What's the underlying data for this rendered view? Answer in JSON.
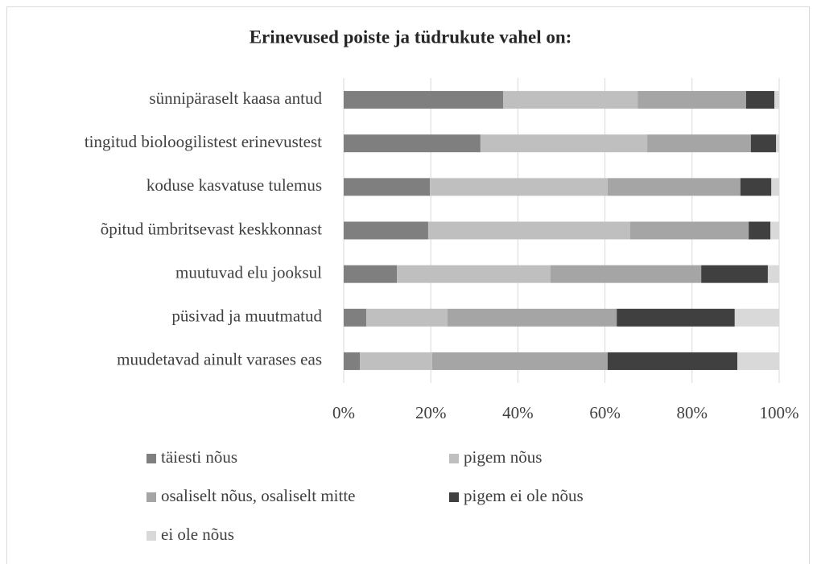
{
  "chart_data": {
    "type": "stacked_bar_horizontal",
    "title": "Erinevused poiste ja tüdrukute vahel on:",
    "categories": [
      "sünnipäraselt kaasa antud",
      "tingitud bioloogilistest erinevustest",
      "koduse kasvatuse tulemus",
      "õpitud ümbritsevast keskkonnast",
      "muutuvad elu jooksul",
      "püsivad ja muutmatud",
      "muudetavad ainult varases eas"
    ],
    "series": [
      {
        "name": "täiesti nõus",
        "color": "#7f7f7f",
        "values": [
          36.6,
          31.4,
          19.8,
          19.4,
          12.2,
          5.2,
          3.7
        ]
      },
      {
        "name": "pigem nõus",
        "color": "#bfbfbf",
        "values": [
          30.9,
          38.3,
          40.8,
          46.4,
          35.3,
          18.6,
          16.6
        ]
      },
      {
        "name": "osaliselt nõus, osaliselt mitte",
        "color": "#a5a5a5",
        "values": [
          24.9,
          23.8,
          30.5,
          27.2,
          34.6,
          38.9,
          40.3
        ]
      },
      {
        "name": "pigem ei ole nõus",
        "color": "#404040",
        "values": [
          6.5,
          5.8,
          7.1,
          5.0,
          15.3,
          27.1,
          29.8
        ]
      },
      {
        "name": "ei ole nõus",
        "color": "#d9d9d9",
        "values": [
          1.1,
          0.7,
          1.8,
          2.0,
          2.6,
          10.2,
          9.6
        ]
      }
    ],
    "xlim": [
      0,
      100
    ],
    "xticks": [
      {
        "value": 0,
        "label": "0%"
      },
      {
        "value": 20,
        "label": "20%"
      },
      {
        "value": 40,
        "label": "40%"
      },
      {
        "value": 60,
        "label": "60%"
      },
      {
        "value": 80,
        "label": "80%"
      },
      {
        "value": 100,
        "label": "100%"
      }
    ],
    "grid": true
  }
}
